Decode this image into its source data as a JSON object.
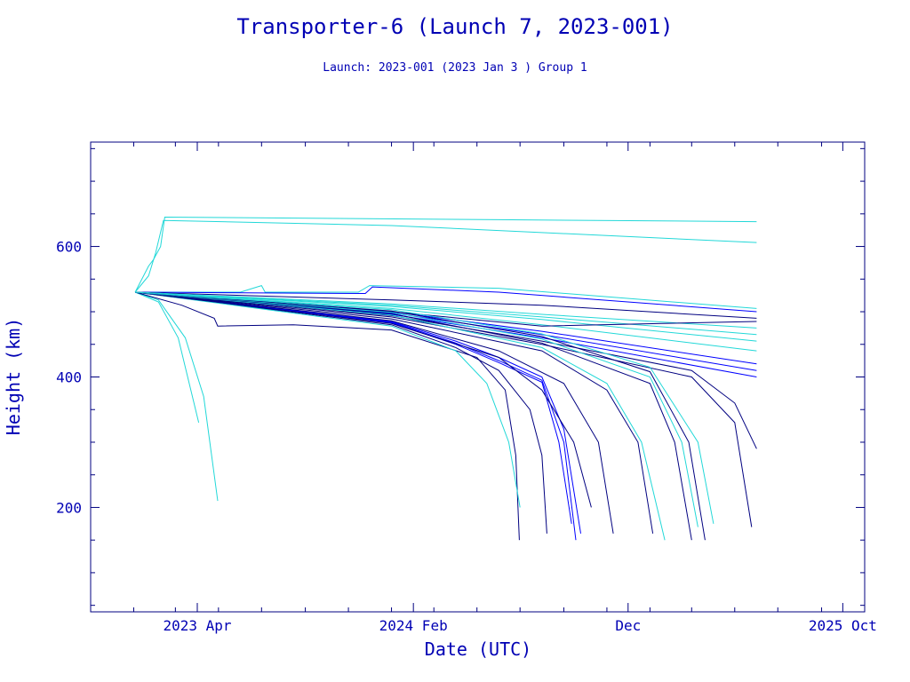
{
  "chart_data": {
    "type": "line",
    "title": "Transporter-6 (Launch 7, 2023-001)",
    "subtitle": "Launch: 2023-001  (2023 Jan  3 )  Group 1",
    "xlabel": "Date (UTC)",
    "ylabel": "Height (km)",
    "x_tick_labels": [
      "2023 Apr",
      "2024 Feb",
      "Dec",
      "2025 Oct"
    ],
    "x_ticks": [
      "2023-04-01",
      "2024-02-01",
      "2024-12-01",
      "2025-10-01"
    ],
    "y_ticks": [
      200,
      400,
      600
    ],
    "xlim": [
      "2022-11-01",
      "2025-11-01"
    ],
    "ylim": [
      40,
      760
    ],
    "grid": false,
    "colors": {
      "axis": "#000080",
      "text": "#0000b4",
      "dark": "#000080",
      "blue": "#0000ff",
      "cyan": "#22d8d8"
    },
    "note": "Each series is a set of [date, height_km] points; values estimated from the plot.",
    "series": [
      {
        "color": "cyan",
        "points": [
          [
            "2023-01-03",
            530
          ],
          [
            "2023-02-05",
            515
          ],
          [
            "2023-03-05",
            460
          ],
          [
            "2023-04-03",
            330
          ]
        ]
      },
      {
        "color": "cyan",
        "points": [
          [
            "2023-01-03",
            530
          ],
          [
            "2023-02-05",
            518
          ],
          [
            "2023-03-15",
            460
          ],
          [
            "2023-04-10",
            370
          ],
          [
            "2023-04-30",
            210
          ]
        ]
      },
      {
        "color": "cyan",
        "points": [
          [
            "2023-01-03",
            530
          ],
          [
            "2023-01-22",
            570
          ],
          [
            "2023-01-29",
            580
          ],
          [
            "2023-02-08",
            600
          ],
          [
            "2023-02-14",
            645
          ],
          [
            "2024-06-01",
            641
          ],
          [
            "2025-06-01",
            638
          ]
        ]
      },
      {
        "color": "cyan",
        "points": [
          [
            "2023-01-03",
            530
          ],
          [
            "2023-01-22",
            555
          ],
          [
            "2023-02-01",
            590
          ],
          [
            "2023-02-12",
            640
          ],
          [
            "2024-01-01",
            632
          ],
          [
            "2025-06-01",
            606
          ]
        ]
      },
      {
        "color": "cyan",
        "points": [
          [
            "2023-01-03",
            530
          ],
          [
            "2023-06-01",
            530
          ],
          [
            "2023-07-01",
            540
          ],
          [
            "2023-07-06",
            530
          ],
          [
            "2023-11-15",
            530
          ],
          [
            "2023-12-01",
            540
          ],
          [
            "2024-06-01",
            536
          ],
          [
            "2025-06-01",
            505
          ]
        ]
      },
      {
        "color": "dark",
        "points": [
          [
            "2023-01-03",
            530
          ],
          [
            "2023-03-10",
            510
          ],
          [
            "2023-04-25",
            490
          ],
          [
            "2023-04-30",
            478
          ],
          [
            "2023-08-15",
            480
          ],
          [
            "2024-01-01",
            472
          ],
          [
            "2024-05-01",
            430
          ],
          [
            "2024-06-10",
            380
          ],
          [
            "2024-06-25",
            280
          ],
          [
            "2024-06-30",
            150
          ]
        ]
      },
      {
        "color": "blue",
        "points": [
          [
            "2023-01-03",
            530
          ],
          [
            "2023-11-25",
            528
          ],
          [
            "2023-12-05",
            538
          ],
          [
            "2024-06-01",
            530
          ],
          [
            "2025-06-01",
            500
          ]
        ]
      },
      {
        "color": "dark",
        "points": [
          [
            "2023-01-03",
            530
          ],
          [
            "2024-01-01",
            518
          ],
          [
            "2024-08-01",
            510
          ],
          [
            "2025-06-01",
            490
          ]
        ]
      },
      {
        "color": "blue",
        "points": [
          [
            "2023-01-03",
            530
          ],
          [
            "2024-01-01",
            500
          ],
          [
            "2024-08-01",
            470
          ],
          [
            "2025-06-01",
            420
          ]
        ]
      },
      {
        "color": "blue",
        "points": [
          [
            "2023-01-03",
            530
          ],
          [
            "2024-01-01",
            498
          ],
          [
            "2024-08-01",
            465
          ],
          [
            "2025-06-01",
            410
          ]
        ]
      },
      {
        "color": "blue",
        "points": [
          [
            "2023-01-03",
            530
          ],
          [
            "2024-01-01",
            496
          ],
          [
            "2024-08-01",
            460
          ],
          [
            "2025-06-01",
            400
          ]
        ]
      },
      {
        "color": "dark",
        "points": [
          [
            "2023-01-03",
            530
          ],
          [
            "2024-01-01",
            494
          ],
          [
            "2024-08-01",
            455
          ],
          [
            "2025-03-01",
            410
          ],
          [
            "2025-05-01",
            360
          ],
          [
            "2025-06-01",
            290
          ]
        ]
      },
      {
        "color": "dark",
        "points": [
          [
            "2023-01-03",
            530
          ],
          [
            "2024-01-01",
            492
          ],
          [
            "2024-08-01",
            450
          ],
          [
            "2025-03-01",
            400
          ],
          [
            "2025-05-01",
            330
          ],
          [
            "2025-05-25",
            170
          ]
        ]
      },
      {
        "color": "cyan",
        "points": [
          [
            "2023-01-03",
            530
          ],
          [
            "2024-01-01",
            505
          ],
          [
            "2024-08-01",
            480
          ],
          [
            "2025-06-01",
            440
          ]
        ]
      },
      {
        "color": "cyan",
        "points": [
          [
            "2023-01-03",
            530
          ],
          [
            "2024-01-01",
            508
          ],
          [
            "2024-08-01",
            488
          ],
          [
            "2025-06-01",
            455
          ]
        ]
      },
      {
        "color": "cyan",
        "points": [
          [
            "2023-01-03",
            530
          ],
          [
            "2024-01-01",
            510
          ],
          [
            "2024-08-01",
            492
          ],
          [
            "2025-06-01",
            465
          ]
        ]
      },
      {
        "color": "cyan",
        "points": [
          [
            "2023-01-03",
            530
          ],
          [
            "2024-01-01",
            512
          ],
          [
            "2024-08-01",
            496
          ],
          [
            "2025-06-01",
            475
          ]
        ]
      },
      {
        "color": "dark",
        "points": [
          [
            "2023-01-03",
            530
          ],
          [
            "2024-01-01",
            500
          ],
          [
            "2024-08-01",
            478
          ],
          [
            "2025-06-01",
            485
          ]
        ]
      },
      {
        "color": "blue",
        "points": [
          [
            "2023-01-03",
            530
          ],
          [
            "2024-01-01",
            485
          ],
          [
            "2024-04-01",
            455
          ],
          [
            "2024-06-01",
            430
          ],
          [
            "2024-08-01",
            400
          ],
          [
            "2024-09-01",
            320
          ],
          [
            "2024-09-25",
            160
          ]
        ]
      },
      {
        "color": "blue",
        "points": [
          [
            "2023-01-03",
            530
          ],
          [
            "2024-01-01",
            484
          ],
          [
            "2024-04-01",
            452
          ],
          [
            "2024-06-01",
            425
          ],
          [
            "2024-08-01",
            395
          ],
          [
            "2024-09-01",
            300
          ],
          [
            "2024-09-18",
            150
          ]
        ]
      },
      {
        "color": "blue",
        "points": [
          [
            "2023-01-03",
            530
          ],
          [
            "2024-01-01",
            483
          ],
          [
            "2024-04-01",
            450
          ],
          [
            "2024-06-01",
            422
          ],
          [
            "2024-08-01",
            392
          ],
          [
            "2024-08-25",
            300
          ],
          [
            "2024-09-12",
            175
          ]
        ]
      },
      {
        "color": "dark",
        "points": [
          [
            "2023-01-03",
            530
          ],
          [
            "2024-01-01",
            480
          ],
          [
            "2024-04-01",
            445
          ],
          [
            "2024-06-01",
            410
          ],
          [
            "2024-07-15",
            350
          ],
          [
            "2024-08-01",
            280
          ],
          [
            "2024-08-08",
            160
          ]
        ]
      },
      {
        "color": "cyan",
        "points": [
          [
            "2023-01-03",
            530
          ],
          [
            "2024-01-01",
            478
          ],
          [
            "2024-04-01",
            440
          ],
          [
            "2024-05-15",
            390
          ],
          [
            "2024-06-15",
            300
          ],
          [
            "2024-07-01",
            200
          ]
        ]
      },
      {
        "color": "dark",
        "points": [
          [
            "2023-01-03",
            530
          ],
          [
            "2024-01-01",
            482
          ],
          [
            "2024-06-01",
            430
          ],
          [
            "2024-08-01",
            380
          ],
          [
            "2024-09-15",
            300
          ],
          [
            "2024-10-10",
            200
          ]
        ]
      },
      {
        "color": "dark",
        "points": [
          [
            "2023-01-03",
            530
          ],
          [
            "2024-01-01",
            486
          ],
          [
            "2024-06-01",
            440
          ],
          [
            "2024-09-01",
            390
          ],
          [
            "2024-10-20",
            300
          ],
          [
            "2024-11-10",
            160
          ]
        ]
      },
      {
        "color": "dark",
        "points": [
          [
            "2023-01-03",
            530
          ],
          [
            "2024-01-01",
            489
          ],
          [
            "2024-08-01",
            440
          ],
          [
            "2024-11-01",
            380
          ],
          [
            "2024-12-15",
            300
          ],
          [
            "2025-01-05",
            160
          ]
        ]
      },
      {
        "color": "cyan",
        "points": [
          [
            "2023-01-03",
            530
          ],
          [
            "2024-01-01",
            495
          ],
          [
            "2024-08-01",
            445
          ],
          [
            "2024-11-01",
            390
          ],
          [
            "2024-12-20",
            300
          ],
          [
            "2025-01-22",
            150
          ]
        ]
      },
      {
        "color": "dark",
        "points": [
          [
            "2023-01-03",
            530
          ],
          [
            "2024-01-01",
            497
          ],
          [
            "2024-08-01",
            452
          ],
          [
            "2025-01-01",
            390
          ],
          [
            "2025-02-05",
            300
          ],
          [
            "2025-03-01",
            150
          ]
        ]
      },
      {
        "color": "cyan",
        "points": [
          [
            "2023-01-03",
            530
          ],
          [
            "2024-01-01",
            499
          ],
          [
            "2024-08-01",
            458
          ],
          [
            "2025-01-01",
            400
          ],
          [
            "2025-02-15",
            300
          ],
          [
            "2025-03-10",
            170
          ]
        ]
      },
      {
        "color": "dark",
        "points": [
          [
            "2023-01-03",
            530
          ],
          [
            "2024-01-01",
            501
          ],
          [
            "2024-08-01",
            462
          ],
          [
            "2025-01-01",
            408
          ],
          [
            "2025-02-25",
            300
          ],
          [
            "2025-03-20",
            150
          ]
        ]
      },
      {
        "color": "cyan",
        "points": [
          [
            "2023-01-03",
            530
          ],
          [
            "2024-01-01",
            503
          ],
          [
            "2024-08-01",
            466
          ],
          [
            "2025-01-01",
            415
          ],
          [
            "2025-03-10",
            300
          ],
          [
            "2025-04-01",
            175
          ]
        ]
      }
    ]
  }
}
